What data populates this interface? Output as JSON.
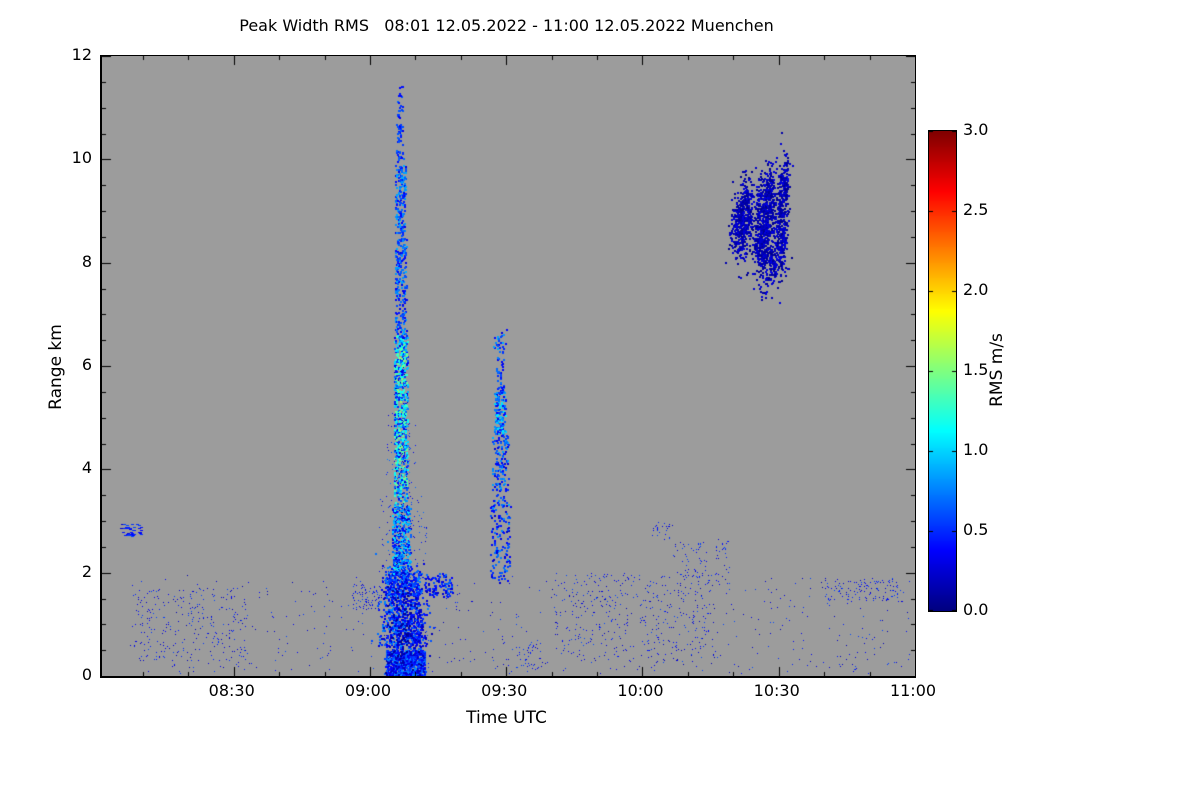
{
  "figure": {
    "background": "#ffffff"
  },
  "chart_data": {
    "type": "heatmap",
    "title": "Peak Width RMS   08:01 12.05.2022 - 11:00 12.05.2022 Muenchen",
    "instrument_quantity": "Peak Width RMS",
    "location": "Muenchen",
    "date": "12.05.2022",
    "time_start": "08:01",
    "time_end": "11:00",
    "xlabel": "Time UTC",
    "ylabel": "Range km",
    "x_domain_minutes": [
      481,
      660
    ],
    "ylim": [
      0,
      12
    ],
    "y_ticks": [
      {
        "label": "0",
        "value": 0
      },
      {
        "label": "2",
        "value": 2
      },
      {
        "label": "4",
        "value": 4
      },
      {
        "label": "6",
        "value": 6
      },
      {
        "label": "8",
        "value": 8
      },
      {
        "label": "10",
        "value": 10
      },
      {
        "label": "12",
        "value": 12
      }
    ],
    "y_minor_step": 0.5,
    "x_ticks": [
      {
        "label": "08:30",
        "minutes": 510
      },
      {
        "label": "09:00",
        "minutes": 540
      },
      {
        "label": "09:30",
        "minutes": 570
      },
      {
        "label": "10:00",
        "minutes": 600
      },
      {
        "label": "10:30",
        "minutes": 630
      },
      {
        "label": "11:00",
        "minutes": 660
      }
    ],
    "x_minor_step_minutes": 10,
    "plot_bg_color": "#9c9c9c",
    "grid": false,
    "colorbar": {
      "label": "RMS m/s",
      "min": 0.0,
      "max": 3.0,
      "tick_labels": [
        "0.0",
        "0.5",
        "1.0",
        "1.5",
        "2.0",
        "2.5",
        "3.0"
      ],
      "tick_values": [
        0.0,
        0.5,
        1.0,
        1.5,
        2.0,
        2.5,
        3.0
      ],
      "colormap": "jet",
      "colormap_stops": [
        "#000080",
        "#0000ff",
        "#00ffff",
        "#80ff80",
        "#ffff00",
        "#ff8000",
        "#ff0000",
        "#800000"
      ],
      "position": "right"
    },
    "render_seed": 42,
    "features": [
      {
        "group": "main-plume-base",
        "dist": "uniform",
        "t": [
          543.5,
          552.0
        ],
        "alt": [
          0.0,
          0.5
        ],
        "n": 700,
        "v": [
          0.15,
          0.8
        ],
        "size": 2
      },
      {
        "group": "main-plume-base",
        "dist": "gauss",
        "tc": 546.0,
        "ac": 1.05,
        "st": 1.9,
        "sa": 0.55,
        "n": 600,
        "v": [
          0.15,
          0.8
        ],
        "size": 2
      },
      {
        "group": "main-plume-base",
        "dist": "gauss",
        "tc": 550.0,
        "ac": 0.9,
        "st": 1.2,
        "sa": 0.5,
        "n": 350,
        "v": [
          0.15,
          0.7
        ],
        "size": 2
      },
      {
        "group": "main-plume-base",
        "dist": "uniform",
        "t": [
          543.2,
          551.0
        ],
        "alt": [
          1.55,
          2.05
        ],
        "n": 300,
        "v": [
          0.2,
          0.8
        ],
        "size": 2
      },
      {
        "group": "main-plume-base-dark",
        "dist": "gauss",
        "tc": 546.8,
        "ac": 0.9,
        "st": 1.5,
        "sa": 0.5,
        "n": 120,
        "v": [
          0.02,
          0.2
        ],
        "size": 2
      },
      {
        "group": "main-plume-core",
        "dist": "uniform",
        "t": [
          544.8,
          548.8
        ],
        "alt": [
          2.0,
          3.3
        ],
        "n": 350,
        "v": [
          0.25,
          1.1
        ],
        "size": 2
      },
      {
        "group": "main-plume-core",
        "dist": "uniform",
        "t": [
          545.2,
          548.2
        ],
        "alt": [
          3.3,
          6.6
        ],
        "n": 650,
        "v": [
          0.3,
          1.45
        ],
        "size": 2
      },
      {
        "group": "main-plume-core-bright",
        "dist": "uniform",
        "t": [
          545.6,
          547.6
        ],
        "alt": [
          4.0,
          6.3
        ],
        "n": 60,
        "v": [
          1.0,
          1.6
        ],
        "size": 2
      },
      {
        "group": "main-plume-core-dark",
        "dist": "uniform",
        "t": [
          545.3,
          548.1
        ],
        "alt": [
          2.0,
          6.0
        ],
        "n": 90,
        "v": [
          0.02,
          0.25
        ],
        "size": 1
      },
      {
        "group": "main-plume-upper",
        "dist": "uniform",
        "t": [
          545.4,
          547.9
        ],
        "alt": [
          6.6,
          8.6
        ],
        "n": 220,
        "v": [
          0.3,
          0.9
        ],
        "size": 2
      },
      {
        "group": "main-plume-upper",
        "dist": "uniform",
        "t": [
          545.5,
          547.7
        ],
        "alt": [
          8.6,
          9.9
        ],
        "n": 160,
        "v": [
          0.3,
          0.9
        ],
        "size": 2
      },
      {
        "group": "main-plume-top",
        "dist": "uniform",
        "t": [
          545.7,
          547.3
        ],
        "alt": [
          9.9,
          10.7
        ],
        "n": 45,
        "v": [
          0.3,
          0.7
        ],
        "size": 2
      },
      {
        "group": "main-plume-top",
        "dist": "uniform",
        "t": [
          545.9,
          547.1
        ],
        "alt": [
          10.8,
          11.5
        ],
        "n": 22,
        "v": [
          0.3,
          0.7
        ],
        "size": 2
      },
      {
        "group": "main-plume-halo",
        "dist": "uniform",
        "t": [
          541.5,
          552.5
        ],
        "alt": [
          1.8,
          3.5
        ],
        "n": 120,
        "v": [
          0.2,
          0.7
        ],
        "size": 1
      },
      {
        "group": "main-plume-halo",
        "dist": "uniform",
        "t": [
          543.5,
          550.0
        ],
        "alt": [
          3.5,
          5.2
        ],
        "n": 70,
        "v": [
          0.25,
          0.8
        ],
        "size": 1
      },
      {
        "group": "secondary-plume",
        "dist": "uniform",
        "t": [
          566.3,
          571.0
        ],
        "alt": [
          1.8,
          3.3
        ],
        "n": 130,
        "v": [
          0.2,
          0.8
        ],
        "size": 2
      },
      {
        "group": "secondary-plume",
        "dist": "uniform",
        "t": [
          566.8,
          570.3
        ],
        "alt": [
          3.3,
          4.7
        ],
        "n": 150,
        "v": [
          0.25,
          0.9
        ],
        "size": 2
      },
      {
        "group": "secondary-plume",
        "dist": "uniform",
        "t": [
          567.3,
          569.7
        ],
        "alt": [
          4.7,
          5.5
        ],
        "n": 130,
        "v": [
          0.3,
          1.1
        ],
        "size": 2
      },
      {
        "group": "secondary-plume",
        "dist": "uniform",
        "t": [
          567.6,
          569.4
        ],
        "alt": [
          5.5,
          6.1
        ],
        "n": 35,
        "v": [
          0.3,
          0.8
        ],
        "size": 2
      },
      {
        "group": "secondary-plume-top",
        "dist": "gauss",
        "tc": 568.5,
        "ac": 6.4,
        "st": 0.5,
        "sa": 0.15,
        "n": 30,
        "v": [
          0.3,
          0.9
        ],
        "size": 2
      },
      {
        "group": "cloud-layer",
        "dist": "gauss",
        "tc": 621.3,
        "ac": 8.7,
        "st": 1.0,
        "sa": 0.32,
        "n": 320,
        "v": [
          0.03,
          0.3
        ],
        "size": 2
      },
      {
        "group": "cloud-layer",
        "dist": "gauss",
        "tc": 622.8,
        "ac": 9.15,
        "st": 0.6,
        "sa": 0.25,
        "n": 140,
        "v": [
          0.03,
          0.3
        ],
        "size": 2
      },
      {
        "group": "cloud-layer",
        "dist": "gauss",
        "tc": 626.3,
        "ac": 8.6,
        "st": 1.1,
        "sa": 0.5,
        "n": 520,
        "v": [
          0.03,
          0.3
        ],
        "size": 2
      },
      {
        "group": "cloud-layer",
        "dist": "gauss",
        "tc": 627.8,
        "ac": 9.35,
        "st": 0.6,
        "sa": 0.3,
        "n": 150,
        "v": [
          0.03,
          0.3
        ],
        "size": 2
      },
      {
        "group": "cloud-layer",
        "dist": "gauss",
        "tc": 630.3,
        "ac": 8.85,
        "st": 0.9,
        "sa": 0.55,
        "n": 330,
        "v": [
          0.03,
          0.3
        ],
        "size": 2
      },
      {
        "group": "cloud-layer",
        "dist": "gauss",
        "tc": 631.2,
        "ac": 9.55,
        "st": 0.45,
        "sa": 0.22,
        "n": 80,
        "v": [
          0.03,
          0.3
        ],
        "size": 2
      },
      {
        "group": "cloud-layer",
        "dist": "gauss",
        "tc": 628.6,
        "ac": 8.0,
        "st": 0.8,
        "sa": 0.18,
        "n": 90,
        "v": [
          0.03,
          0.3
        ],
        "size": 2
      },
      {
        "group": "boundary-layer",
        "dist": "uniform",
        "t": [
          487,
          659
        ],
        "alt": [
          0.05,
          1.95
        ],
        "n": 550,
        "v": [
          0.15,
          0.6
        ],
        "size": 1
      },
      {
        "group": "boundary-layer",
        "dist": "uniform",
        "t": [
          488,
          513
        ],
        "alt": [
          0.3,
          1.7
        ],
        "n": 230,
        "v": [
          0.15,
          0.6
        ],
        "size": 1
      },
      {
        "group": "elevated-streak",
        "dist": "uniform",
        "t": [
          485,
          489.5
        ],
        "alt": [
          2.7,
          2.95
        ],
        "n": 45,
        "v": [
          0.2,
          0.6
        ],
        "w": 3,
        "h": 1
      },
      {
        "group": "boundary-layer",
        "dist": "uniform",
        "t": [
          536,
          542.5
        ],
        "alt": [
          1.3,
          1.8
        ],
        "n": 90,
        "v": [
          0.2,
          0.6
        ],
        "size": 1
      },
      {
        "group": "boundary-layer",
        "dist": "uniform",
        "t": [
          552,
          558
        ],
        "alt": [
          1.55,
          2.0
        ],
        "n": 110,
        "v": [
          0.2,
          0.7
        ],
        "size": 2
      },
      {
        "group": "boundary-layer",
        "dist": "uniform",
        "t": [
          572,
          578
        ],
        "alt": [
          0.1,
          0.7
        ],
        "n": 50,
        "v": [
          0.2,
          0.6
        ],
        "size": 1
      },
      {
        "group": "boundary-layer",
        "dist": "uniform",
        "t": [
          580,
          616
        ],
        "alt": [
          0.3,
          2.0
        ],
        "n": 380,
        "v": [
          0.15,
          0.6
        ],
        "size": 1
      },
      {
        "group": "elevated-speckle",
        "dist": "uniform",
        "t": [
          602,
          606.5
        ],
        "alt": [
          2.65,
          3.0
        ],
        "n": 28,
        "v": [
          0.2,
          0.6
        ],
        "size": 1
      },
      {
        "group": "elevated-speckle",
        "dist": "uniform",
        "t": [
          606.5,
          614
        ],
        "alt": [
          1.9,
          2.6
        ],
        "n": 55,
        "v": [
          0.2,
          0.6
        ],
        "size": 1
      },
      {
        "group": "elevated-speckle",
        "dist": "uniform",
        "t": [
          616,
          619
        ],
        "alt": [
          1.7,
          2.7
        ],
        "n": 35,
        "v": [
          0.2,
          0.6
        ],
        "size": 1
      },
      {
        "group": "boundary-layer",
        "dist": "uniform",
        "t": [
          640,
          657
        ],
        "alt": [
          1.45,
          1.9
        ],
        "n": 130,
        "v": [
          0.2,
          0.6
        ],
        "size": 1
      }
    ]
  }
}
